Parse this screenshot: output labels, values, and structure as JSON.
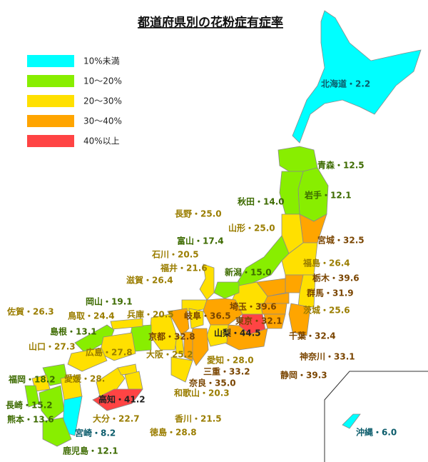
{
  "title": "都道府県別の花粉症有症率",
  "legend": [
    {
      "label": "10%未満",
      "color": "#00ffff"
    },
    {
      "label": "10～20%",
      "color": "#88ee00"
    },
    {
      "label": "20～30%",
      "color": "#ffe000"
    },
    {
      "label": "30～40%",
      "color": "#ffa500"
    },
    {
      "label": "40%以上",
      "color": "#ff4444"
    }
  ],
  "prefectures": [
    {
      "label": "北海道・2.2",
      "value": 2.2,
      "color": "#00ffff"
    },
    {
      "label": "青森・12.5",
      "value": 12.5,
      "color": "#88ee00"
    },
    {
      "label": "岩手・12.1",
      "value": 12.1,
      "color": "#88ee00"
    },
    {
      "label": "秋田・14.0",
      "value": 14.0,
      "color": "#88ee00"
    },
    {
      "label": "宮城・32.5",
      "value": 32.5,
      "color": "#ffa500"
    },
    {
      "label": "山形・25.0",
      "value": 25.0,
      "color": "#ffe000"
    },
    {
      "label": "福島・26.4",
      "value": 26.4,
      "color": "#ffe000"
    },
    {
      "label": "新潟・15.0",
      "value": 15.0,
      "color": "#88ee00"
    },
    {
      "label": "長野・25.0",
      "value": 25.0,
      "color": "#ffe000"
    },
    {
      "label": "富山・17.4",
      "value": 17.4,
      "color": "#88ee00"
    },
    {
      "label": "石川・20.5",
      "value": 20.5,
      "color": "#ffe000"
    },
    {
      "label": "福井・21.6",
      "value": 21.6,
      "color": "#ffe000"
    },
    {
      "label": "岐阜・36.5",
      "value": 36.5,
      "color": "#ffa500"
    },
    {
      "label": "栃木・39.6",
      "value": 39.6,
      "color": "#ffa500"
    },
    {
      "label": "群馬・31.9",
      "value": 31.9,
      "color": "#ffa500"
    },
    {
      "label": "茨城・25.6",
      "value": 25.6,
      "color": "#ffe000"
    },
    {
      "label": "埼玉・39.6",
      "value": 39.6,
      "color": "#ffa500"
    },
    {
      "label": "東京・32.1",
      "value": 32.1,
      "color": "#ffa500"
    },
    {
      "label": "千葉・32.4",
      "value": 32.4,
      "color": "#ffa500"
    },
    {
      "label": "神奈川・33.1",
      "value": 33.1,
      "color": "#ffa500"
    },
    {
      "label": "山梨・44.5",
      "value": 44.5,
      "color": "#ff4444"
    },
    {
      "label": "静岡・39.3",
      "value": 39.3,
      "color": "#ffa500"
    },
    {
      "label": "愛知・28.0",
      "value": 28.0,
      "color": "#ffe000"
    },
    {
      "label": "三重・33.2",
      "value": 33.2,
      "color": "#ffa500"
    },
    {
      "label": "滋賀・26.4",
      "value": 26.4,
      "color": "#ffe000"
    },
    {
      "label": "京都・32.8",
      "value": 32.8,
      "color": "#ffa500"
    },
    {
      "label": "大阪・25.2",
      "value": 25.2,
      "color": "#ffe000"
    },
    {
      "label": "奈良・35.0",
      "value": 35.0,
      "color": "#ffa500"
    },
    {
      "label": "和歌山・20.3",
      "value": 20.3,
      "color": "#ffe000"
    },
    {
      "label": "兵庫・20.5",
      "value": 20.5,
      "color": "#ffe000"
    },
    {
      "label": "岡山・19.1",
      "value": 19.1,
      "color": "#88ee00"
    },
    {
      "label": "鳥取・24.4",
      "value": 24.4,
      "color": "#ffe000"
    },
    {
      "label": "島根・13.1",
      "value": 13.1,
      "color": "#88ee00"
    },
    {
      "label": "広島・27.8",
      "value": 27.8,
      "color": "#ffe000"
    },
    {
      "label": "山口・27.3",
      "value": 27.3,
      "color": "#ffe000"
    },
    {
      "label": "福岡・18.2",
      "value": 18.2,
      "color": "#88ee00"
    },
    {
      "label": "佐賀・26.3",
      "value": 26.3,
      "color": "#ffe000"
    },
    {
      "label": "長崎・15.2",
      "value": 15.2,
      "color": "#88ee00"
    },
    {
      "label": "熊本・13.6",
      "value": 13.6,
      "color": "#88ee00"
    },
    {
      "label": "大分・22.7",
      "value": 22.7,
      "color": "#ffe000"
    },
    {
      "label": "宮崎・8.2",
      "value": 8.2,
      "color": "#00ffff"
    },
    {
      "label": "鹿児島・12.1",
      "value": 12.1,
      "color": "#88ee00"
    },
    {
      "label": "愛媛・28.",
      "value": 28,
      "color": "#ffe000"
    },
    {
      "label": "香川・21.5",
      "value": 21.5,
      "color": "#ffe000"
    },
    {
      "label": "徳島・28.8",
      "value": 28.8,
      "color": "#ffe000"
    },
    {
      "label": "高知・41.2",
      "value": 41.2,
      "color": "#ff4444"
    },
    {
      "label": "沖縄・6.0",
      "value": 6.0,
      "color": "#00ffff"
    }
  ]
}
